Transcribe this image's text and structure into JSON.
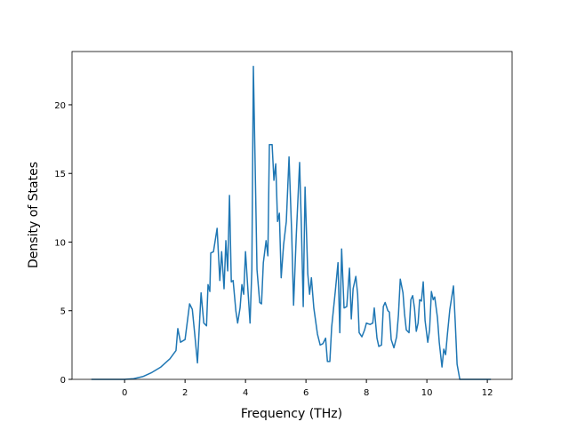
{
  "chart_data": {
    "type": "line",
    "xlabel": "Frequency (THz)",
    "ylabel": "Density of States",
    "xlim": [
      -1.74,
      12.82
    ],
    "ylim": [
      0,
      23.88
    ],
    "xticks": [
      0,
      2,
      4,
      6,
      8,
      10,
      12
    ],
    "yticks": [
      0,
      5,
      10,
      15,
      20
    ],
    "x": [
      -1.1,
      0,
      0.3,
      0.6,
      0.9,
      1.2,
      1.5,
      1.7,
      1.76,
      1.85,
      2.0,
      2.15,
      2.24,
      2.32,
      2.41,
      2.53,
      2.62,
      2.71,
      2.76,
      2.82,
      2.85,
      2.94,
      3.06,
      3.15,
      3.21,
      3.29,
      3.35,
      3.41,
      3.47,
      3.53,
      3.59,
      3.68,
      3.74,
      3.82,
      3.88,
      3.94,
      4.0,
      4.06,
      4.15,
      4.21,
      4.26,
      4.32,
      4.38,
      4.47,
      4.53,
      4.59,
      4.68,
      4.74,
      4.79,
      4.88,
      4.94,
      5.0,
      5.06,
      5.12,
      5.18,
      5.26,
      5.35,
      5.44,
      5.53,
      5.59,
      5.68,
      5.79,
      5.85,
      5.91,
      5.97,
      6.06,
      6.12,
      6.18,
      6.26,
      6.38,
      6.47,
      6.56,
      6.65,
      6.71,
      6.79,
      6.85,
      6.97,
      7.06,
      7.12,
      7.18,
      7.26,
      7.35,
      7.44,
      7.5,
      7.56,
      7.65,
      7.71,
      7.76,
      7.85,
      7.94,
      8.0,
      8.12,
      8.21,
      8.26,
      8.35,
      8.41,
      8.5,
      8.56,
      8.62,
      8.71,
      8.76,
      8.82,
      8.91,
      9.0,
      9.06,
      9.12,
      9.21,
      9.26,
      9.32,
      9.41,
      9.47,
      9.53,
      9.59,
      9.65,
      9.71,
      9.76,
      9.82,
      9.88,
      9.94,
      10.03,
      10.09,
      10.15,
      10.21,
      10.26,
      10.35,
      10.41,
      10.5,
      10.56,
      10.62,
      10.68,
      10.76,
      10.88,
      10.94,
      11.0,
      11.09,
      12.12
    ],
    "series": [
      {
        "color": "#1f77b4",
        "values": [
          0,
          0,
          0.05,
          0.2,
          0.5,
          0.9,
          1.5,
          2.1,
          3.7,
          2.7,
          2.9,
          5.5,
          5.1,
          3.3,
          1.2,
          6.3,
          4.1,
          3.9,
          6.9,
          6.4,
          9.2,
          9.3,
          11.0,
          7.2,
          9.3,
          6.6,
          10.1,
          7.9,
          13.4,
          7.1,
          7.2,
          5.0,
          4.1,
          5.2,
          6.9,
          6.2,
          9.3,
          7.2,
          4.1,
          8.0,
          22.8,
          15.5,
          8.0,
          5.6,
          5.5,
          8.5,
          10.1,
          9.0,
          17.1,
          17.1,
          14.5,
          15.7,
          11.5,
          12.1,
          7.4,
          9.8,
          11.5,
          16.2,
          10.5,
          5.4,
          10.5,
          15.8,
          11.0,
          5.3,
          14.0,
          7.7,
          6.2,
          7.4,
          5.2,
          3.3,
          2.5,
          2.6,
          3.0,
          1.3,
          1.3,
          3.8,
          6.4,
          8.5,
          3.4,
          9.5,
          5.2,
          5.3,
          8.1,
          4.4,
          6.6,
          7.5,
          6.2,
          3.4,
          3.1,
          3.6,
          4.1,
          4.0,
          4.1,
          5.2,
          3.0,
          2.4,
          2.5,
          5.3,
          5.6,
          5.0,
          4.9,
          2.9,
          2.3,
          3.1,
          4.7,
          7.3,
          6.3,
          4.8,
          3.6,
          3.4,
          5.8,
          6.1,
          5.2,
          3.5,
          4.1,
          5.8,
          5.7,
          7.1,
          4.3,
          2.7,
          3.6,
          6.4,
          5.8,
          6.0,
          4.5,
          2.7,
          0.9,
          2.2,
          1.8,
          3.3,
          5.1,
          6.8,
          4.1,
          1.1,
          0,
          0
        ]
      }
    ]
  }
}
